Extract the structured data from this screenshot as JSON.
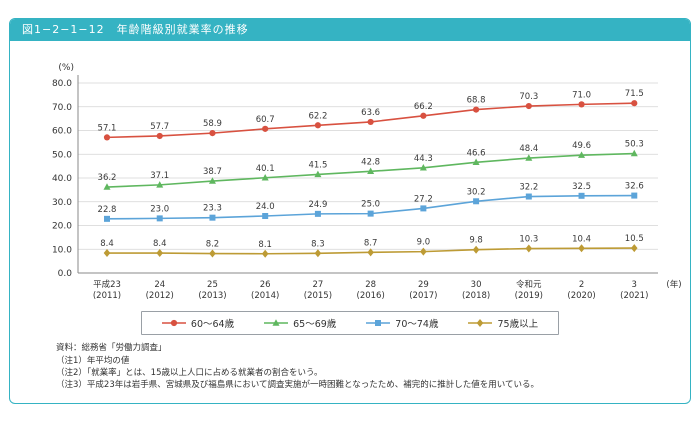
{
  "header": {
    "title": "図1−2−1−12　年齢階級別就業率の推移"
  },
  "chart_data": {
    "type": "line",
    "unit_label": "(%)",
    "year_unit_label": "(年)",
    "ylim": [
      0,
      80
    ],
    "ytick_step": 10,
    "grid": true,
    "legend_position": "bottom",
    "categories_line1": [
      "平成23",
      "24",
      "25",
      "26",
      "27",
      "28",
      "29",
      "30",
      "令和元",
      "2",
      "3"
    ],
    "categories_line2": [
      "(2011)",
      "(2012)",
      "(2013)",
      "(2014)",
      "(2015)",
      "(2016)",
      "(2017)",
      "(2018)",
      "(2019)",
      "(2020)",
      "(2021)"
    ],
    "series": [
      {
        "name": "60～64歳",
        "color": "#d85140",
        "marker": "circle",
        "values": [
          57.1,
          57.7,
          58.9,
          60.7,
          62.2,
          63.6,
          66.2,
          68.8,
          70.3,
          71.0,
          71.5
        ]
      },
      {
        "name": "65～69歳",
        "color": "#5fb75f",
        "marker": "triangle",
        "values": [
          36.2,
          37.1,
          38.7,
          40.1,
          41.5,
          42.8,
          44.3,
          46.6,
          48.4,
          49.6,
          50.3
        ]
      },
      {
        "name": "70～74歳",
        "color": "#5ca4d9",
        "marker": "square",
        "values": [
          22.8,
          23.0,
          23.3,
          24.0,
          24.9,
          25.0,
          27.2,
          30.2,
          32.2,
          32.5,
          32.6
        ]
      },
      {
        "name": "75歳以上",
        "color": "#bd9b35",
        "marker": "diamond",
        "values": [
          8.4,
          8.4,
          8.2,
          8.1,
          8.3,
          8.7,
          9.0,
          9.8,
          10.3,
          10.4,
          10.5
        ]
      }
    ]
  },
  "notes": {
    "source": "資料：総務省「労働力調査」",
    "note1": "（注1）年平均の値",
    "note2": "（注2）「就業率」とは、15歳以上人口に占める就業者の割合をいう。",
    "note3": "（注3）平成23年は岩手県、宮城県及び福島県において調査実施が一時困難となったため、補完的に推計した値を用いている。"
  },
  "colors": {
    "accent_teal": "#35b3c3"
  }
}
